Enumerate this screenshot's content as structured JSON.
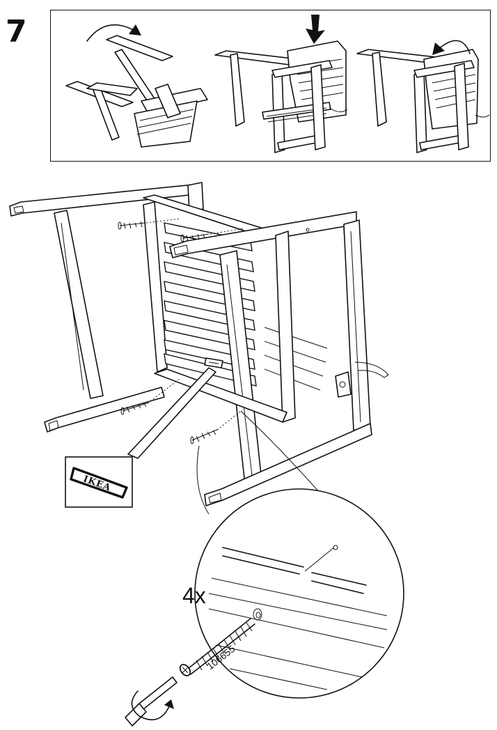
{
  "step": {
    "number": "7"
  },
  "callout": {
    "quantity": "4x",
    "part_number": "106655"
  },
  "logo": {
    "text": "IKEA"
  },
  "icons": {
    "flip": "curved-arrow-icon",
    "press": "down-arrow-icon",
    "rotate": "rotate-arrow-icon",
    "screwdriver": "screwdriver-icon"
  },
  "colors": {
    "ink": "#111111",
    "paper": "#ffffff"
  }
}
